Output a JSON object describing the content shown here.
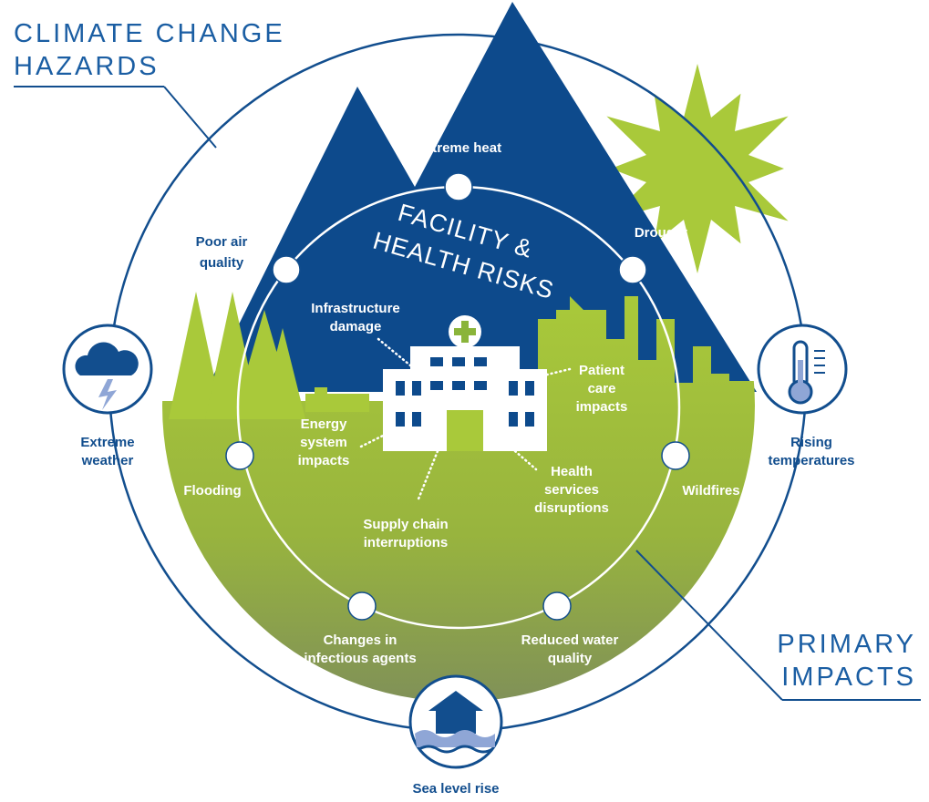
{
  "title": {
    "lines": [
      "CLIMATE CHANGE",
      "HAZARDS"
    ]
  },
  "primary_impacts_heading": {
    "lines": [
      "PRIMARY",
      "IMPACTS"
    ]
  },
  "center_label": {
    "lines": [
      "FACILITY &",
      "HEALTH RISKS"
    ]
  },
  "hazards": [
    {
      "lines": [
        "Extreme",
        "weather"
      ]
    },
    {
      "lines": [
        "Rising",
        "temperatures"
      ]
    },
    {
      "lines": [
        "Sea level rise"
      ]
    }
  ],
  "primary_impacts": [
    {
      "lines": [
        "Extreme heat"
      ]
    },
    {
      "lines": [
        "Drought"
      ]
    },
    {
      "lines": [
        "Wildfires"
      ]
    },
    {
      "lines": [
        "Reduced water",
        "quality"
      ]
    },
    {
      "lines": [
        "Changes in",
        "infectious agents"
      ]
    },
    {
      "lines": [
        "Flooding"
      ]
    },
    {
      "lines": [
        "Poor air",
        "quality"
      ]
    }
  ],
  "facility_risks": [
    {
      "lines": [
        "Infrastructure",
        "damage"
      ]
    },
    {
      "lines": [
        "Patient",
        "care",
        "impacts"
      ]
    },
    {
      "lines": [
        "Health",
        "services",
        "disruptions"
      ]
    },
    {
      "lines": [
        "Supply chain",
        "interruptions"
      ]
    },
    {
      "lines": [
        "Energy",
        "system",
        "impacts"
      ]
    }
  ]
}
